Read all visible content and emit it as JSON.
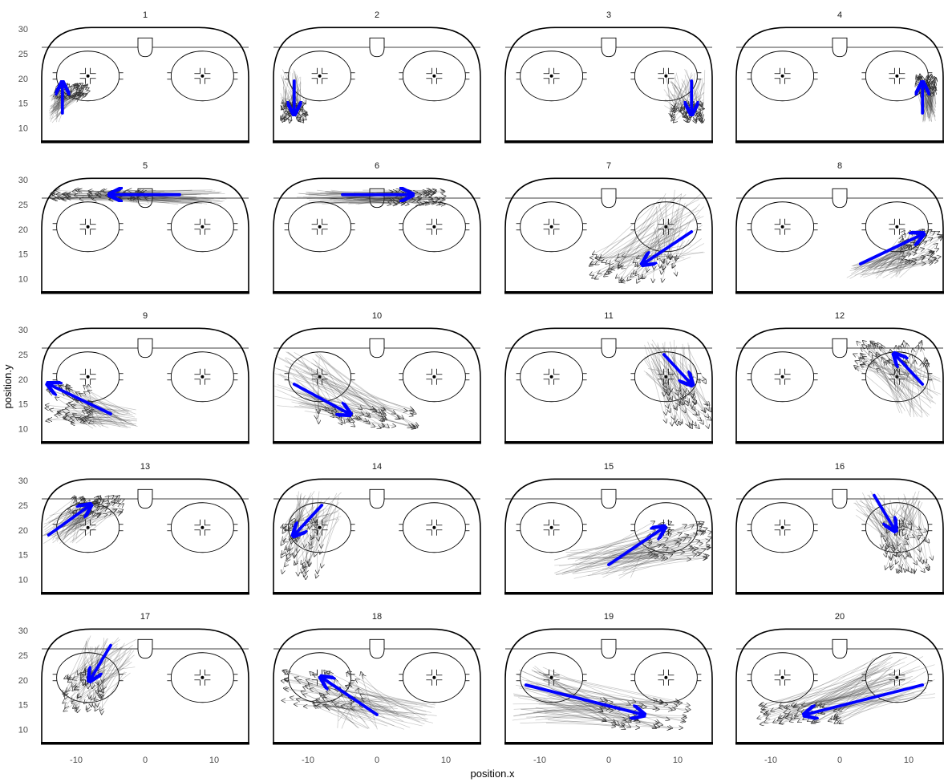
{
  "chart_data": {
    "type": "faceted-vector-plot",
    "xlabel": "position.x",
    "ylabel": "position.y",
    "xlim": [
      -15,
      15
    ],
    "ylim": [
      7,
      31
    ],
    "x_ticks": [
      -10,
      0,
      10
    ],
    "x_tick_labels": [
      "-10",
      "0",
      "10"
    ],
    "y_ticks": [
      10,
      15,
      20,
      25,
      30
    ],
    "y_tick_labels": [
      "10",
      "15",
      "20",
      "25",
      "30"
    ],
    "grid": false,
    "legend": "none",
    "colors": {
      "cluster_arrow": "#0000ff",
      "trajectory": "#333333",
      "rink": "#000000"
    },
    "facets": [
      {
        "label": "1",
        "arrow": [
          [
            -12,
            13
          ],
          [
            -12,
            19
          ]
        ],
        "traj": {
          "from": [
            [
              -14,
              11
            ],
            [
              -12.5,
              17
            ]
          ],
          "to": [
            [
              -13,
              16
            ],
            [
              -8,
              19
            ]
          ]
        }
      },
      {
        "label": "2",
        "arrow": [
          [
            -12,
            19.5
          ],
          [
            -12,
            13
          ]
        ],
        "traj": {
          "from": [
            [
              -14,
              14
            ],
            [
              -11,
              22
            ]
          ],
          "to": [
            [
              -14,
              11
            ],
            [
              -10,
              15
            ]
          ]
        }
      },
      {
        "label": "3",
        "arrow": [
          [
            12,
            19.5
          ],
          [
            12,
            13
          ]
        ],
        "traj": {
          "from": [
            [
              8,
              14
            ],
            [
              14,
              22
            ]
          ],
          "to": [
            [
              9,
              11
            ],
            [
              14,
              15
            ]
          ]
        }
      },
      {
        "label": "4",
        "arrow": [
          [
            12,
            13
          ],
          [
            12,
            19
          ]
        ],
        "traj": {
          "from": [
            [
              12,
              11
            ],
            [
              14,
              15
            ]
          ],
          "to": [
            [
              11,
              17
            ],
            [
              14,
              21
            ]
          ]
        }
      },
      {
        "label": "5",
        "arrow": [
          [
            5,
            27
          ],
          [
            -5,
            27
          ]
        ],
        "traj": {
          "from": [
            [
              -2,
              25
            ],
            [
              12,
              28
            ]
          ],
          "to": [
            [
              -14,
              26
            ],
            [
              0,
              28
            ]
          ]
        }
      },
      {
        "label": "6",
        "arrow": [
          [
            -5,
            27
          ],
          [
            5,
            27
          ]
        ],
        "traj": {
          "from": [
            [
              -12,
              25
            ],
            [
              0,
              28
            ]
          ],
          "to": [
            [
              2,
              25
            ],
            [
              10,
              28
            ]
          ]
        }
      },
      {
        "label": "7",
        "arrow": [
          [
            12,
            19.5
          ],
          [
            5,
            13
          ]
        ],
        "traj": {
          "from": [
            [
              6,
              14
            ],
            [
              14,
              28
            ]
          ],
          "to": [
            [
              -3,
              9
            ],
            [
              10,
              15
            ]
          ]
        }
      },
      {
        "label": "8",
        "arrow": [
          [
            3,
            13
          ],
          [
            12,
            19
          ]
        ],
        "traj": {
          "from": [
            [
              1,
              10
            ],
            [
              9,
              13
            ]
          ],
          "to": [
            [
              9,
              13
            ],
            [
              15,
              20
            ]
          ]
        }
      },
      {
        "label": "9",
        "arrow": [
          [
            -5,
            13
          ],
          [
            -14,
            19
          ]
        ],
        "traj": {
          "from": [
            [
              -8,
              10
            ],
            [
              -1,
              14
            ]
          ],
          "to": [
            [
              -15,
              11
            ],
            [
              -8,
              19
            ]
          ]
        }
      },
      {
        "label": "10",
        "arrow": [
          [
            -12,
            19
          ],
          [
            -4,
            13
          ]
        ],
        "traj": {
          "from": [
            [
              -15,
              13
            ],
            [
              -8,
              26
            ]
          ],
          "to": [
            [
              -9,
              10
            ],
            [
              6,
              14
            ]
          ]
        }
      },
      {
        "label": "11",
        "arrow": [
          [
            8,
            25
          ],
          [
            12,
            19
          ]
        ],
        "traj": {
          "from": [
            [
              5,
              21
            ],
            [
              12,
              28
            ]
          ],
          "to": [
            [
              8,
              10
            ],
            [
              15,
              20
            ]
          ]
        }
      },
      {
        "label": "12",
        "arrow": [
          [
            12,
            19
          ],
          [
            8,
            25
          ]
        ],
        "traj": {
          "from": [
            [
              8,
              12
            ],
            [
              15,
              21
            ]
          ],
          "to": [
            [
              1,
              22
            ],
            [
              13,
              28
            ]
          ]
        }
      },
      {
        "label": "13",
        "arrow": [
          [
            -14,
            19
          ],
          [
            -8,
            25
          ]
        ],
        "traj": {
          "from": [
            [
              -15,
              17
            ],
            [
              -10,
              23
            ]
          ],
          "to": [
            [
              -11,
              23
            ],
            [
              -3,
              27
            ]
          ]
        }
      },
      {
        "label": "14",
        "arrow": [
          [
            -8,
            25
          ],
          [
            -12,
            19
          ]
        ],
        "traj": {
          "from": [
            [
              -12,
              22
            ],
            [
              -5,
              28
            ]
          ],
          "to": [
            [
              -14,
              10
            ],
            [
              -8,
              22
            ]
          ]
        }
      },
      {
        "label": "15",
        "arrow": [
          [
            0,
            13
          ],
          [
            8,
            20.5
          ]
        ],
        "traj": {
          "from": [
            [
              -8,
              10
            ],
            [
              4,
              16
            ]
          ],
          "to": [
            [
              6,
              14
            ],
            [
              15,
              22
            ]
          ]
        }
      },
      {
        "label": "16",
        "arrow": [
          [
            5,
            27
          ],
          [
            8,
            20
          ]
        ],
        "traj": {
          "from": [
            [
              2,
              23
            ],
            [
              12,
              28
            ]
          ],
          "to": [
            [
              6,
              11
            ],
            [
              14,
              22
            ]
          ]
        }
      },
      {
        "label": "17",
        "arrow": [
          [
            -5,
            27
          ],
          [
            -8,
            20
          ]
        ],
        "traj": {
          "from": [
            [
              -9,
              21
            ],
            [
              -1,
              29
            ]
          ],
          "to": [
            [
              -12,
              13
            ],
            [
              -6,
              22
            ]
          ]
        }
      },
      {
        "label": "18",
        "arrow": [
          [
            0,
            13
          ],
          [
            -8,
            20.5
          ]
        ],
        "traj": {
          "from": [
            [
              -6,
              10
            ],
            [
              9,
              16
            ]
          ],
          "to": [
            [
              -14,
              14
            ],
            [
              -2,
              22
            ]
          ]
        }
      },
      {
        "label": "19",
        "arrow": [
          [
            -12,
            19
          ],
          [
            5,
            13
          ]
        ],
        "traj": {
          "from": [
            [
              -14,
              11
            ],
            [
              -8,
              23
            ]
          ],
          "to": [
            [
              -1,
              10
            ],
            [
              12,
              16
            ]
          ]
        }
      },
      {
        "label": "20",
        "arrow": [
          [
            12,
            19
          ],
          [
            -5,
            13
          ]
        ],
        "traj": {
          "from": [
            [
              4,
              16
            ],
            [
              14,
              25
            ]
          ],
          "to": [
            [
              -12,
              11
            ],
            [
              0,
              15
            ]
          ]
        }
      }
    ]
  }
}
